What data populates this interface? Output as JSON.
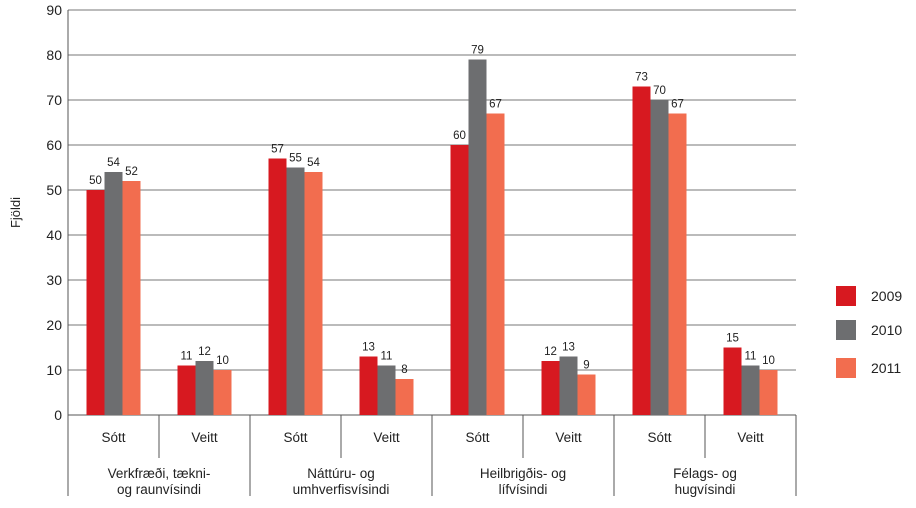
{
  "chart_data": {
    "type": "bar",
    "ylabel": "Fjöldi",
    "xlabel": "",
    "ylim": [
      0,
      90
    ],
    "yticks": [
      0,
      10,
      20,
      30,
      40,
      50,
      60,
      70,
      80,
      90
    ],
    "grid": true,
    "legend_position": "right",
    "categories": [
      "Sótt",
      "Veitt",
      "Sótt",
      "Veitt",
      "Sótt",
      "Veitt",
      "Sótt",
      "Veitt"
    ],
    "groups": [
      {
        "lines": [
          "Verkfræði, tækni-",
          "og raunvísindi"
        ]
      },
      {
        "lines": [
          "Náttúru- og",
          "umhverfisvísindi"
        ]
      },
      {
        "lines": [
          "Heilbrigðis- og",
          "lífvísindi"
        ]
      },
      {
        "lines": [
          "Félags- og",
          "hugvísindi"
        ]
      }
    ],
    "series": [
      {
        "name": "2009",
        "color": "#d71920",
        "values": [
          50,
          11,
          57,
          13,
          60,
          12,
          73,
          15
        ]
      },
      {
        "name": "2010",
        "color": "#6d6e70",
        "values": [
          54,
          12,
          55,
          11,
          79,
          13,
          70,
          11
        ]
      },
      {
        "name": "2011",
        "color": "#f26d4f",
        "values": [
          52,
          10,
          54,
          8,
          67,
          9,
          67,
          10
        ]
      }
    ]
  }
}
